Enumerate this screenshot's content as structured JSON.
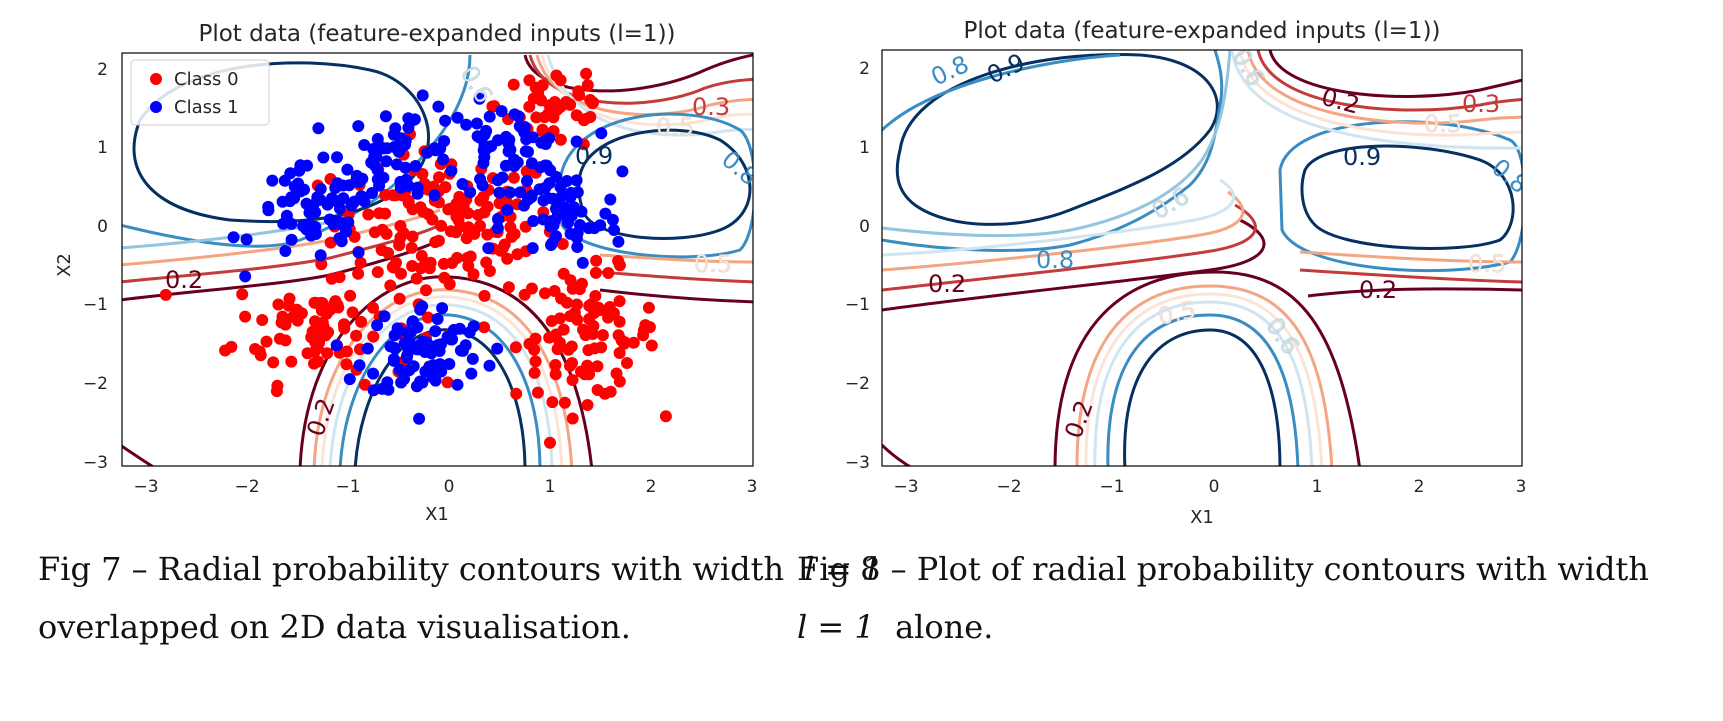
{
  "chart_data": [
    {
      "type": "scatter",
      "title": "Plot data (feature-expanded inputs (l=1))",
      "xlabel": "X1",
      "ylabel": "X2",
      "xlim": [
        -3.2,
        3.05
      ],
      "ylim": [
        -3.05,
        2.15
      ],
      "xticks": [
        "−3",
        "−2",
        "−1",
        "0",
        "1",
        "2",
        "3"
      ],
      "yticks": [
        "2",
        "1",
        "0",
        "−1",
        "−2",
        "−3"
      ],
      "legend": {
        "placement": "top-left",
        "entries": [
          {
            "name": "Class 0",
            "color": "#ff0000"
          },
          {
            "name": "Class 1",
            "color": "#0000ff"
          }
        ]
      },
      "series": [
        {
          "name": "Class 0",
          "color": "#ff0000",
          "clusters": [
            {
              "cx": 0.0,
              "cy": 0.0,
              "sx": 0.55,
              "sy": 0.45,
              "n": 150
            },
            {
              "cx": -1.2,
              "cy": -1.3,
              "sx": 0.45,
              "sy": 0.35,
              "n": 90
            },
            {
              "cx": 1.4,
              "cy": -1.4,
              "sx": 0.35,
              "sy": 0.4,
              "n": 95
            },
            {
              "cx": 1.1,
              "cy": 1.5,
              "sx": 0.3,
              "sy": 0.3,
              "n": 45
            }
          ]
        },
        {
          "name": "Class 1",
          "color": "#0000ff",
          "clusters": [
            {
              "cx": -1.3,
              "cy": 0.1,
              "sx": 0.3,
              "sy": 0.3,
              "n": 65
            },
            {
              "cx": -0.4,
              "cy": 0.9,
              "sx": 0.3,
              "sy": 0.3,
              "n": 60
            },
            {
              "cx": 0.6,
              "cy": 0.9,
              "sx": 0.3,
              "sy": 0.3,
              "n": 65
            },
            {
              "cx": 1.15,
              "cy": 0.05,
              "sx": 0.3,
              "sy": 0.3,
              "n": 55
            },
            {
              "cx": -0.2,
              "cy": -1.6,
              "sx": 0.3,
              "sy": 0.3,
              "n": 85
            }
          ]
        }
      ],
      "contour_levels": [
        {
          "level": "0.2",
          "color": "#67001f"
        },
        {
          "level": "0.3",
          "color": "#c43b3b"
        },
        {
          "level": "0.4",
          "color": "#f4a582"
        },
        {
          "level": "0.5",
          "color": "#fbe3d6"
        },
        {
          "level": "0.6",
          "color": "#d1e5f0"
        },
        {
          "level": "0.7",
          "color": "#92c5de"
        },
        {
          "level": "0.8",
          "color": "#3a8dc2"
        },
        {
          "level": "0.9",
          "color": "#053061"
        }
      ]
    },
    {
      "type": "contour",
      "title": "Plot data (feature-expanded inputs (l=1))",
      "xlabel": "X1",
      "ylabel": "X2",
      "xlim": [
        -3.2,
        3.05
      ],
      "ylim": [
        -3.05,
        2.15
      ],
      "xticks": [
        "−3",
        "−2",
        "−1",
        "0",
        "1",
        "2",
        "3"
      ],
      "yticks": [
        "2",
        "1",
        "0",
        "−1",
        "−2",
        "−3"
      ]
    }
  ],
  "captions": {
    "fig7_line1_a": "Fig 7 – Radial probability contours with width",
    "fig7_line1_math": "l = 1",
    "fig7_line2": "overlapped on 2D data visualisation.",
    "fig8_line1": "Fig 8 – Plot of radial probability contours with width",
    "fig8_line2_math": "l = 1",
    "fig8_line2_b": "alone."
  },
  "contour_labels": [
    "0.2",
    "0.3",
    "0.5",
    "0.6",
    "0.8",
    "0.9",
    "0.2",
    "0.3",
    "0.5",
    "0.6",
    "0.8",
    "0.9",
    "0.6",
    "0.5",
    "0.6",
    "0.2"
  ]
}
